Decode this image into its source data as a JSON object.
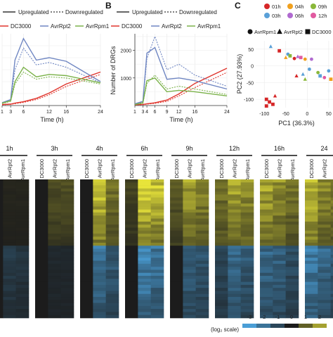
{
  "panel_labels": {
    "b": "B",
    "c": "C"
  },
  "colors": {
    "dc3000": "#e0342c",
    "avrrpt2": "#6f86c2",
    "avrrpm1": "#7bb24a",
    "heat_low": "#4a9ed6",
    "heat_mid": "#1c1c1c",
    "heat_high": "#e8e43a"
  },
  "legend_style": {
    "up": "Upregulated",
    "down": "Downregulated"
  },
  "legend_strains": [
    "DC3000",
    "AvrRpt2",
    "AvrRpm1"
  ],
  "chart_data": [
    {
      "type": "line",
      "panel": "A",
      "xlabel": "Time (h)",
      "x_ticks": [
        "1",
        "3",
        "6",
        "12",
        "16",
        "24"
      ],
      "series": [
        {
          "name": "DC3000",
          "style": "Upregulated",
          "x": [
            1,
            3,
            4,
            6,
            9,
            12,
            16,
            24
          ],
          "values": [
            40,
            60,
            100,
            160,
            300,
            520,
            900,
            1400
          ]
        },
        {
          "name": "DC3000",
          "style": "Downregulated",
          "x": [
            1,
            3,
            4,
            6,
            9,
            12,
            16,
            24
          ],
          "values": [
            30,
            50,
            80,
            130,
            250,
            450,
            800,
            1300
          ]
        },
        {
          "name": "AvrRpt2",
          "style": "Upregulated",
          "x": [
            1,
            3,
            4,
            6,
            9,
            12,
            16,
            24
          ],
          "values": [
            120,
            250,
            1900,
            2800,
            1900,
            2000,
            1850,
            1000
          ]
        },
        {
          "name": "AvrRpt2",
          "style": "Downregulated",
          "x": [
            1,
            3,
            4,
            6,
            9,
            12,
            16,
            24
          ],
          "values": [
            100,
            200,
            1500,
            2400,
            1700,
            1800,
            1600,
            950
          ]
        },
        {
          "name": "AvrRpm1",
          "style": "Upregulated",
          "x": [
            1,
            3,
            4,
            6,
            9,
            12,
            16,
            24
          ],
          "values": [
            100,
            200,
            1000,
            1600,
            1200,
            1300,
            1250,
            950
          ]
        },
        {
          "name": "AvrRpm1",
          "style": "Downregulated",
          "x": [
            1,
            3,
            4,
            6,
            9,
            12,
            16,
            24
          ],
          "values": [
            80,
            180,
            900,
            1400,
            1100,
            1200,
            1150,
            900
          ]
        }
      ]
    },
    {
      "type": "line",
      "panel": "B",
      "xlabel": "Time (h)",
      "ylabel": "Number of DRGs",
      "ylim": [
        0,
        2600
      ],
      "y_ticks": [
        "1000",
        "2000"
      ],
      "x_ticks": [
        "1",
        "3",
        "4",
        "6",
        "9",
        "12",
        "16",
        "24"
      ],
      "series": [
        {
          "name": "DC3000",
          "style": "Upregulated",
          "x": [
            1,
            3,
            4,
            6,
            9,
            12,
            16,
            24
          ],
          "values": [
            30,
            40,
            60,
            100,
            200,
            420,
            800,
            1350
          ]
        },
        {
          "name": "DC3000",
          "style": "Downregulated",
          "x": [
            1,
            3,
            4,
            6,
            9,
            12,
            16,
            24
          ],
          "values": [
            20,
            30,
            50,
            80,
            150,
            350,
            650,
            1200
          ]
        },
        {
          "name": "AvrRpt2",
          "style": "Upregulated",
          "x": [
            1,
            3,
            4,
            6,
            9,
            12,
            16,
            24
          ],
          "values": [
            60,
            150,
            1900,
            2100,
            950,
            1000,
            900,
            600
          ]
        },
        {
          "name": "AvrRpt2",
          "style": "Downregulated",
          "x": [
            1,
            3,
            4,
            6,
            9,
            12,
            16,
            24
          ],
          "values": [
            50,
            120,
            1700,
            2500,
            1300,
            1500,
            1100,
            700
          ]
        },
        {
          "name": "AvrRpm1",
          "style": "Upregulated",
          "x": [
            1,
            3,
            4,
            6,
            9,
            12,
            16,
            24
          ],
          "values": [
            40,
            100,
            900,
            1000,
            500,
            550,
            500,
            350
          ]
        },
        {
          "name": "AvrRpm1",
          "style": "Downregulated",
          "x": [
            1,
            3,
            4,
            6,
            9,
            12,
            16,
            24
          ],
          "values": [
            30,
            80,
            800,
            1100,
            600,
            700,
            600,
            400
          ]
        }
      ]
    },
    {
      "type": "scatter",
      "panel": "C",
      "xlabel": "PC1 (36.3%)",
      "ylabel": "PC2 (27.93%)",
      "xlim": [
        -120,
        60
      ],
      "ylim": [
        -125,
        75
      ],
      "x_ticks": [
        "-100",
        "-50",
        "0",
        "50"
      ],
      "y_ticks": [
        "50",
        "0",
        "-50",
        "-100"
      ],
      "time_legend": [
        {
          "label": "01h",
          "color": "#d62728"
        },
        {
          "label": "04h",
          "color": "#f0a01e"
        },
        {
          "label": "09h",
          "color": "#8ab83a"
        },
        {
          "label": "03h",
          "color": "#5aa0d8"
        },
        {
          "label": "06h",
          "color": "#b06ad0"
        },
        {
          "label": "12h",
          "color": "#e15aa0"
        }
      ],
      "shape_legend": [
        {
          "label": "AvrRpm1",
          "shape": "circle"
        },
        {
          "label": "AvrRpt2",
          "shape": "triangle"
        },
        {
          "label": "DC3000",
          "shape": "square"
        }
      ],
      "points": [
        {
          "x": -85,
          "y": 58,
          "shape": "triangle",
          "color": "#5aa0d8"
        },
        {
          "x": -65,
          "y": 45,
          "shape": "square",
          "color": "#d62728"
        },
        {
          "x": -50,
          "y": 25,
          "shape": "triangle",
          "color": "#f0a01e"
        },
        {
          "x": -45,
          "y": 35,
          "shape": "circle",
          "color": "#5aa0d8"
        },
        {
          "x": -40,
          "y": 30,
          "shape": "square",
          "color": "#8ab83a"
        },
        {
          "x": -30,
          "y": 22,
          "shape": "circle",
          "color": "#d62728"
        },
        {
          "x": -22,
          "y": 28,
          "shape": "triangle",
          "color": "#b06ad0"
        },
        {
          "x": -15,
          "y": 25,
          "shape": "square",
          "color": "#e15aa0"
        },
        {
          "x": -5,
          "y": 20,
          "shape": "circle",
          "color": "#f0a01e"
        },
        {
          "x": 10,
          "y": 20,
          "shape": "circle",
          "color": "#b06ad0"
        },
        {
          "x": 5,
          "y": -10,
          "shape": "circle",
          "color": "#5aa0d8"
        },
        {
          "x": 25,
          "y": -20,
          "shape": "circle",
          "color": "#8ab83a"
        },
        {
          "x": 30,
          "y": -30,
          "shape": "square",
          "color": "#5aa0d8"
        },
        {
          "x": -10,
          "y": -25,
          "shape": "triangle",
          "color": "#5aa0d8"
        },
        {
          "x": 40,
          "y": -35,
          "shape": "circle",
          "color": "#e15aa0"
        },
        {
          "x": 55,
          "y": -40,
          "shape": "square",
          "color": "#f0a01e"
        },
        {
          "x": -5,
          "y": -40,
          "shape": "triangle",
          "color": "#8ab83a"
        },
        {
          "x": -25,
          "y": -30,
          "shape": "triangle",
          "color": "#d62728"
        },
        {
          "x": 50,
          "y": -15,
          "shape": "circle",
          "color": "#5aa0d8"
        },
        {
          "x": -95,
          "y": -100,
          "shape": "square",
          "color": "#d62728"
        },
        {
          "x": -88,
          "y": -108,
          "shape": "square",
          "color": "#d62728"
        },
        {
          "x": -75,
          "y": -90,
          "shape": "triangle",
          "color": "#d62728"
        },
        {
          "x": -95,
          "y": -120,
          "shape": "square",
          "color": "#d62728"
        },
        {
          "x": -80,
          "y": -115,
          "shape": "square",
          "color": "#d62728"
        }
      ]
    },
    {
      "type": "heatmap",
      "panel": "D",
      "timepoints": [
        "1h",
        "3h",
        "4h",
        "6h",
        "9h",
        "12h",
        "16h",
        "24"
      ],
      "columns": [
        "DC3000",
        "AvrRpt2",
        "AvrRpm1"
      ],
      "scale_label": "(log₂ scale)",
      "scale_ticks": [
        "-3",
        "-2",
        "-1",
        "0",
        "1",
        "2"
      ],
      "intensity": {
        "1h": {
          "up": [
            0.0,
            0.05,
            0.05
          ],
          "down": [
            0.0,
            -0.25,
            -0.2
          ]
        },
        "3h": {
          "up": [
            0.0,
            0.25,
            0.25
          ],
          "down": [
            0.0,
            -0.1,
            -0.1
          ]
        },
        "4h": {
          "up": [
            0.0,
            0.85,
            0.45
          ],
          "down": [
            0.0,
            -0.7,
            -0.5
          ]
        },
        "6h": {
          "up": [
            0.2,
            0.95,
            0.85
          ],
          "down": [
            0.0,
            -0.85,
            -0.7
          ]
        },
        "9h": {
          "up": [
            0.3,
            0.65,
            0.55
          ],
          "down": [
            0.0,
            -0.55,
            -0.45
          ]
        },
        "12h": {
          "up": [
            0.45,
            0.7,
            0.6
          ],
          "down": [
            -0.35,
            -0.6,
            -0.5
          ]
        },
        "16h": {
          "up": [
            0.7,
            0.6,
            0.45
          ],
          "down": [
            -0.6,
            -0.55,
            -0.4
          ]
        },
        "24": {
          "up": [
            0.85,
            0.55,
            0.5
          ],
          "down": [
            -0.8,
            -0.6,
            -0.5
          ]
        }
      }
    }
  ]
}
